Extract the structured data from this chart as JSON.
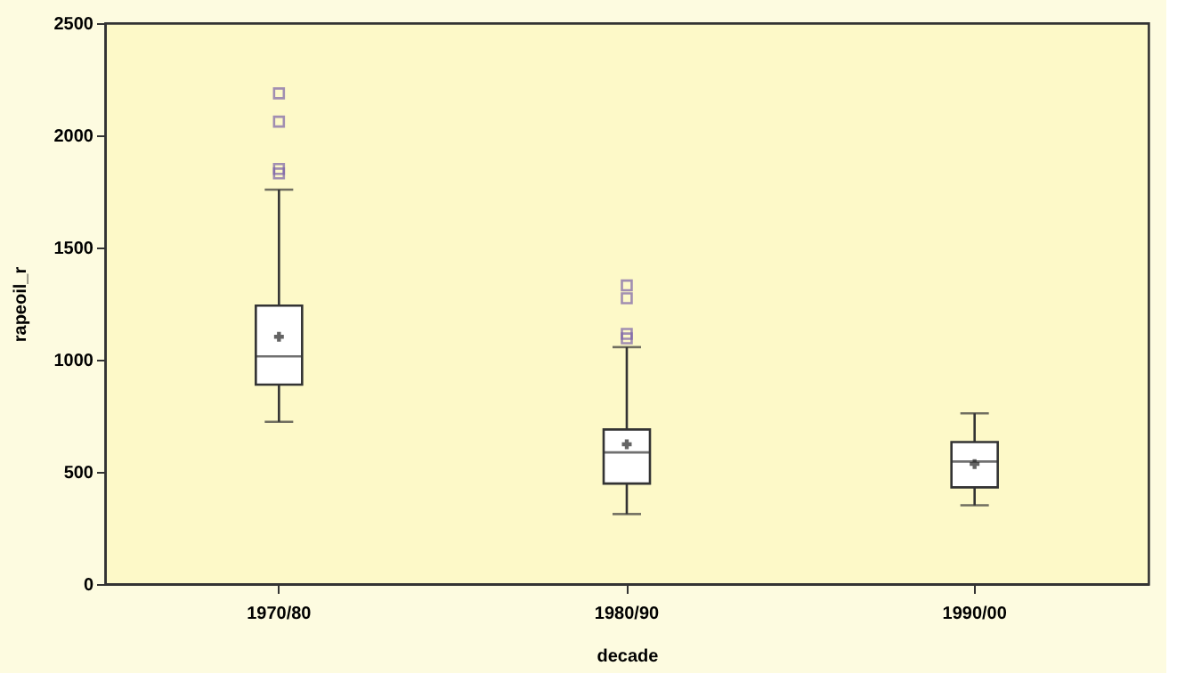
{
  "chart_data": {
    "type": "box",
    "categories": [
      "1970/80",
      "1980/90",
      "1990/00"
    ],
    "boxes": [
      {
        "low": 723,
        "q1": 889,
        "median": 1015,
        "q3": 1241,
        "high": 1758,
        "mean": 1102,
        "outliers": [
          2187,
          2061,
          1850,
          1830
        ]
      },
      {
        "low": 312,
        "q1": 448,
        "median": 587,
        "q3": 689,
        "high": 1056,
        "mean": 623,
        "outliers": [
          1331,
          1274,
          1115,
          1095
        ]
      },
      {
        "low": 351,
        "q1": 431,
        "median": 546,
        "q3": 633,
        "high": 761,
        "mean": 535
      }
    ],
    "color": "#ffffff",
    "xlabel": "decade",
    "ylabel": "rapeoil_r",
    "ylim": [
      0,
      2500
    ],
    "yticks": [
      0,
      500,
      1000,
      1500,
      2000,
      2500
    ]
  }
}
